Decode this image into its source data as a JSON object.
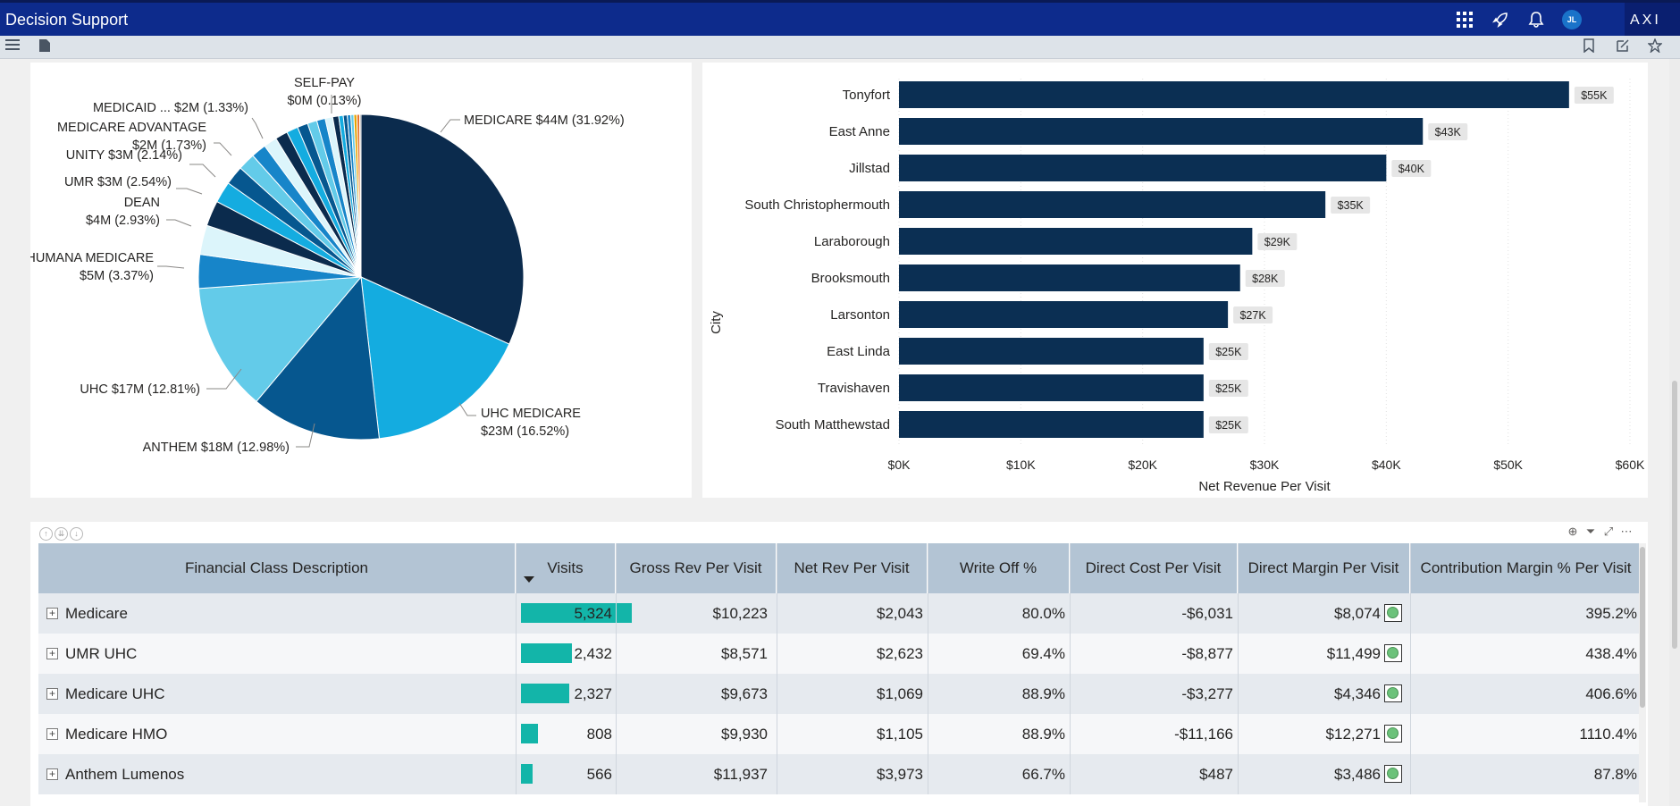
{
  "app": {
    "title": "Decision Support",
    "brand": "AXI",
    "avatar_initials": "JL"
  },
  "icons": {
    "topbar": [
      "apps-grid-icon",
      "rocket-icon",
      "bell-icon"
    ],
    "subbar_left": [
      "hamburger-menu-icon",
      "page-icon"
    ],
    "subbar_right": [
      "bookmark-icon",
      "edit-icon",
      "star-icon"
    ]
  },
  "pie_chart": {
    "chart_data": {
      "type": "pie",
      "slices": [
        {
          "label": "MEDICARE $44M (31.92%)",
          "value": 31.92,
          "color": "#0b2b4d"
        },
        {
          "label": "UHC MEDICARE $23M (16.52%)",
          "value": 16.52,
          "color": "#14ace0"
        },
        {
          "label": "ANTHEM $18M (12.98%)",
          "value": 12.98,
          "color": "#06578f"
        },
        {
          "label": "UHC $17M (12.81%)",
          "value": 12.81,
          "color": "#63cbe9"
        },
        {
          "label": "HUMANA MEDICARE $5M (3.37%)",
          "value": 3.37,
          "color": "#1785c9"
        },
        {
          "label": "DEAN $4M (2.93%)",
          "value": 2.93,
          "color": "#dcf5fb"
        },
        {
          "label": "UMR $3M (2.54%)",
          "value": 2.54,
          "color": "#0b2b4d"
        },
        {
          "label": "UNITY $3M (2.14%)",
          "value": 2.14,
          "color": "#14ace0"
        },
        {
          "label": "",
          "value": 1.9,
          "color": "#06578f"
        },
        {
          "label": "MEDICARE ADVANTAGE $2M (1.73%)",
          "value": 1.73,
          "color": "#63cbe9"
        },
        {
          "label": "",
          "value": 1.5,
          "color": "#1785c9"
        },
        {
          "label": "MEDICAID ... $2M (1.33%)",
          "value": 1.33,
          "color": "#dcf5fb"
        },
        {
          "label": "",
          "value": 1.25,
          "color": "#0b2b4d"
        },
        {
          "label": "",
          "value": 1.15,
          "color": "#14ace0"
        },
        {
          "label": "",
          "value": 1.05,
          "color": "#06578f"
        },
        {
          "label": "",
          "value": 0.95,
          "color": "#63cbe9"
        },
        {
          "label": "",
          "value": 0.85,
          "color": "#1785c9"
        },
        {
          "label": "",
          "value": 0.75,
          "color": "#dcf5fb"
        },
        {
          "label": "",
          "value": 0.6,
          "color": "#0b2b4d"
        },
        {
          "label": "",
          "value": 0.45,
          "color": "#14ace0"
        },
        {
          "label": "",
          "value": 0.4,
          "color": "#06578f"
        },
        {
          "label": "",
          "value": 0.35,
          "color": "#1785c9"
        },
        {
          "label": "",
          "value": 0.3,
          "color": "#63cbe9"
        },
        {
          "label": "",
          "value": 0.3,
          "color": "#e8a200"
        },
        {
          "label": "",
          "value": 0.28,
          "color": "#e8762d"
        },
        {
          "label": "SELF-PAY $0M (0.13%)",
          "value": 0.13,
          "color": "#8a8a8a"
        }
      ]
    },
    "labels": [
      {
        "lines": [
          "MEDICARE $44M (31.92%)"
        ]
      },
      {
        "lines": [
          "UHC MEDICARE",
          "$23M (16.52%)"
        ]
      },
      {
        "lines": [
          "ANTHEM $18M (12.98%)"
        ]
      },
      {
        "lines": [
          "UHC $17M (12.81%)"
        ]
      },
      {
        "lines": [
          "HUMANA MEDICARE",
          "$5M (3.37%)"
        ]
      },
      {
        "lines": [
          "DEAN",
          "$4M (2.93%)"
        ]
      },
      {
        "lines": [
          "UMR $3M (2.54%)"
        ]
      },
      {
        "lines": [
          "UNITY $3M (2.14%)"
        ]
      },
      {
        "lines": [
          "MEDICARE ADVANTAGE",
          "$2M (1.73%)"
        ]
      },
      {
        "lines": [
          "MEDICAID ... $2M (1.33%)"
        ]
      },
      {
        "lines": [
          "SELF-PAY",
          "$0M (0.13%)"
        ]
      }
    ]
  },
  "bar_chart": {
    "chart_data": {
      "type": "bar",
      "orientation": "horizontal",
      "categories": [
        "Tonyfort",
        "East Anne",
        "Jillstad",
        "South Christophermouth",
        "Laraborough",
        "Brooksmouth",
        "Larsonton",
        "East Linda",
        "Travishaven",
        "South Matthewstad"
      ],
      "values": [
        55000,
        43000,
        40000,
        35000,
        29000,
        28000,
        27000,
        25000,
        25000,
        25000
      ],
      "data_labels": [
        "$55K",
        "$43K",
        "$40K",
        "$35K",
        "$29K",
        "$28K",
        "$27K",
        "$25K",
        "$25K",
        "$25K"
      ],
      "xlabel": "Net Revenue Per Visit",
      "ylabel": "City",
      "xlim": [
        0,
        60000
      ],
      "xticks": [
        "$0K",
        "$10K",
        "$20K",
        "$30K",
        "$40K",
        "$50K",
        "$60K"
      ],
      "color": "#0b2f53"
    }
  },
  "table": {
    "columns": [
      "Financial Class Description",
      "Visits",
      "Gross Rev Per Visit",
      "Net Rev Per Visit",
      "Write Off %",
      "Direct Cost Per Visit",
      "Direct Margin Per Visit",
      "Contribution Margin % Per Visit"
    ],
    "visits_max": 5324,
    "bar_color": "#13b5a9",
    "rows": [
      {
        "name": "Medicare",
        "visits": "5,324",
        "visits_value": 5324,
        "gross": "$10,223",
        "net": "$2,043",
        "writeoff": "80.0%",
        "cost": "-$6,031",
        "margin": "$8,074",
        "cm": "395.2%"
      },
      {
        "name": "UMR UHC",
        "visits": "2,432",
        "visits_value": 2432,
        "gross": "$8,571",
        "net": "$2,623",
        "writeoff": "69.4%",
        "cost": "-$8,877",
        "margin": "$11,499",
        "cm": "438.4%"
      },
      {
        "name": "Medicare UHC",
        "visits": "2,327",
        "visits_value": 2327,
        "gross": "$9,673",
        "net": "$1,069",
        "writeoff": "88.9%",
        "cost": "-$3,277",
        "margin": "$4,346",
        "cm": "406.6%"
      },
      {
        "name": "Medicare HMO",
        "visits": "808",
        "visits_value": 808,
        "gross": "$9,930",
        "net": "$1,105",
        "writeoff": "88.9%",
        "cost": "-$11,166",
        "margin": "$12,271",
        "cm": "1110.4%"
      },
      {
        "name": "Anthem Lumenos",
        "visits": "566",
        "visits_value": 566,
        "gross": "$11,937",
        "net": "$3,973",
        "writeoff": "66.7%",
        "cost": "$487",
        "margin": "$3,486",
        "cm": "87.8%"
      }
    ]
  }
}
